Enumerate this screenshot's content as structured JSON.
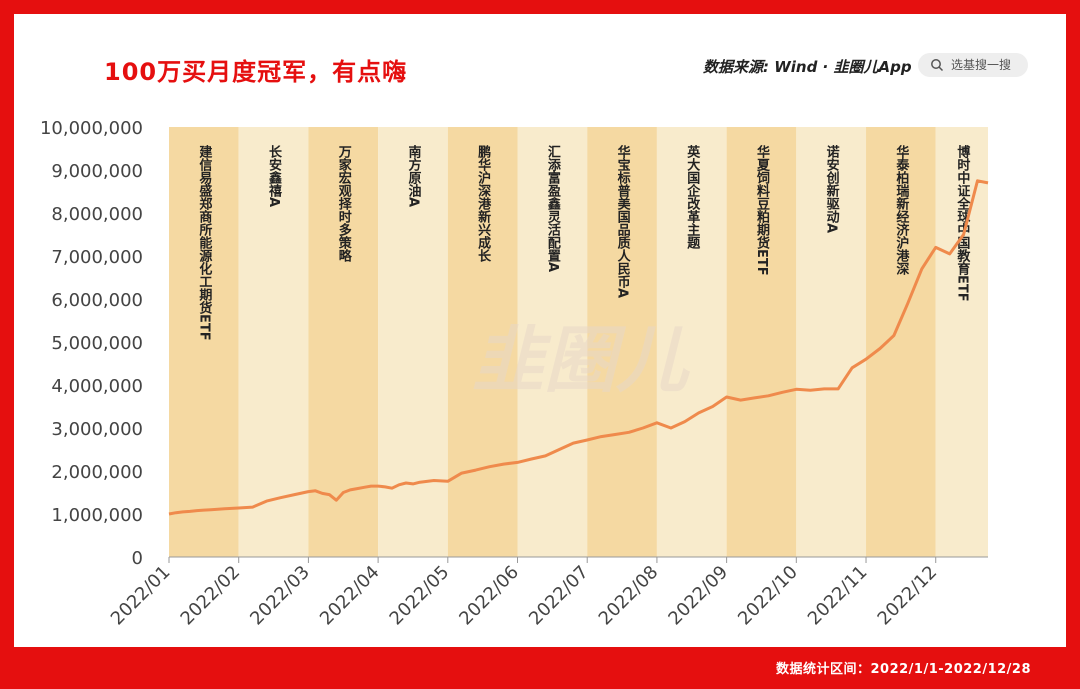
{
  "header": {
    "title": "100万买月度冠军，有点嗨",
    "source": "数据来源: Wind · 韭圈儿App",
    "search_placeholder": "选基搜一搜"
  },
  "footer": {
    "range_text": "数据统计区间：2022/1/1-2022/12/28"
  },
  "watermark": "韭圈儿",
  "colors": {
    "frame": "#e50f0f",
    "band_dark": "#f5d9a2",
    "band_light": "#f8ebcc",
    "line": "#ef8a4c"
  },
  "chart_data": {
    "type": "line",
    "title": "",
    "xlabel": "",
    "ylabel": "",
    "ylim": [
      0,
      10000000
    ],
    "yticks": [
      "0",
      "1,000,000",
      "2,000,000",
      "3,000,000",
      "4,000,000",
      "5,000,000",
      "6,000,000",
      "7,000,000",
      "8,000,000",
      "9,000,000",
      "10,000,000"
    ],
    "x_categories": [
      "2022/01",
      "2022/02",
      "2022/03",
      "2022/04",
      "2022/05",
      "2022/06",
      "2022/07",
      "2022/08",
      "2022/09",
      "2022/10",
      "2022/11",
      "2022/12"
    ],
    "monthly_champions": [
      "建信易盛郑商所能源化工期货ETF",
      "长安鑫禧A",
      "万家宏观择时多策略",
      "南方原油A",
      "鹏华沪深港新兴成长",
      "汇添富盈鑫灵活配置A",
      "华宝标普美国品质人民币A",
      "英大国企改革主题",
      "华夏饲料豆粕期货ETF",
      "诺安创新驱动A",
      "华泰柏瑞新经济沪港深",
      "博时中证全球中国教育ETF"
    ],
    "series": [
      {
        "x": [
          0,
          0.1,
          0.2,
          0.3,
          0.4,
          0.5,
          0.6,
          0.7,
          0.8,
          0.9,
          1.0,
          1.2,
          1.4,
          1.6,
          1.8,
          2.0,
          2.1,
          2.2,
          2.3,
          2.4,
          2.5,
          2.6,
          2.7,
          2.8,
          2.9,
          3.0,
          3.1,
          3.2,
          3.3,
          3.4,
          3.5,
          3.6,
          3.8,
          4.0,
          4.2,
          4.4,
          4.6,
          4.8,
          5.0,
          5.2,
          5.4,
          5.6,
          5.8,
          6.0,
          6.2,
          6.4,
          6.6,
          6.8,
          7.0,
          7.2,
          7.4,
          7.6,
          7.8,
          8.0,
          8.2,
          8.4,
          8.6,
          8.8,
          9.0,
          9.2,
          9.4,
          9.6,
          9.8,
          10.0,
          10.2,
          10.4,
          10.6,
          10.8,
          11.0,
          11.2,
          11.4,
          11.6,
          11.75
        ],
        "values": [
          1000000,
          1030000,
          1050000,
          1060000,
          1080000,
          1090000,
          1100000,
          1110000,
          1120000,
          1130000,
          1140000,
          1160000,
          1300000,
          1380000,
          1450000,
          1520000,
          1540000,
          1480000,
          1450000,
          1320000,
          1500000,
          1560000,
          1590000,
          1620000,
          1650000,
          1650000,
          1630000,
          1600000,
          1680000,
          1720000,
          1700000,
          1740000,
          1780000,
          1760000,
          1950000,
          2020000,
          2100000,
          2160000,
          2200000,
          2280000,
          2350000,
          2500000,
          2650000,
          2720000,
          2800000,
          2850000,
          2900000,
          3000000,
          3120000,
          3000000,
          3150000,
          3350000,
          3500000,
          3720000,
          3650000,
          3700000,
          3750000,
          3830000,
          3900000,
          3880000,
          3910000,
          3910000,
          4400000,
          4600000,
          4850000,
          5150000,
          5900000,
          6700000,
          7200000,
          7050000,
          7500000,
          8750000,
          8700000
        ]
      }
    ]
  }
}
